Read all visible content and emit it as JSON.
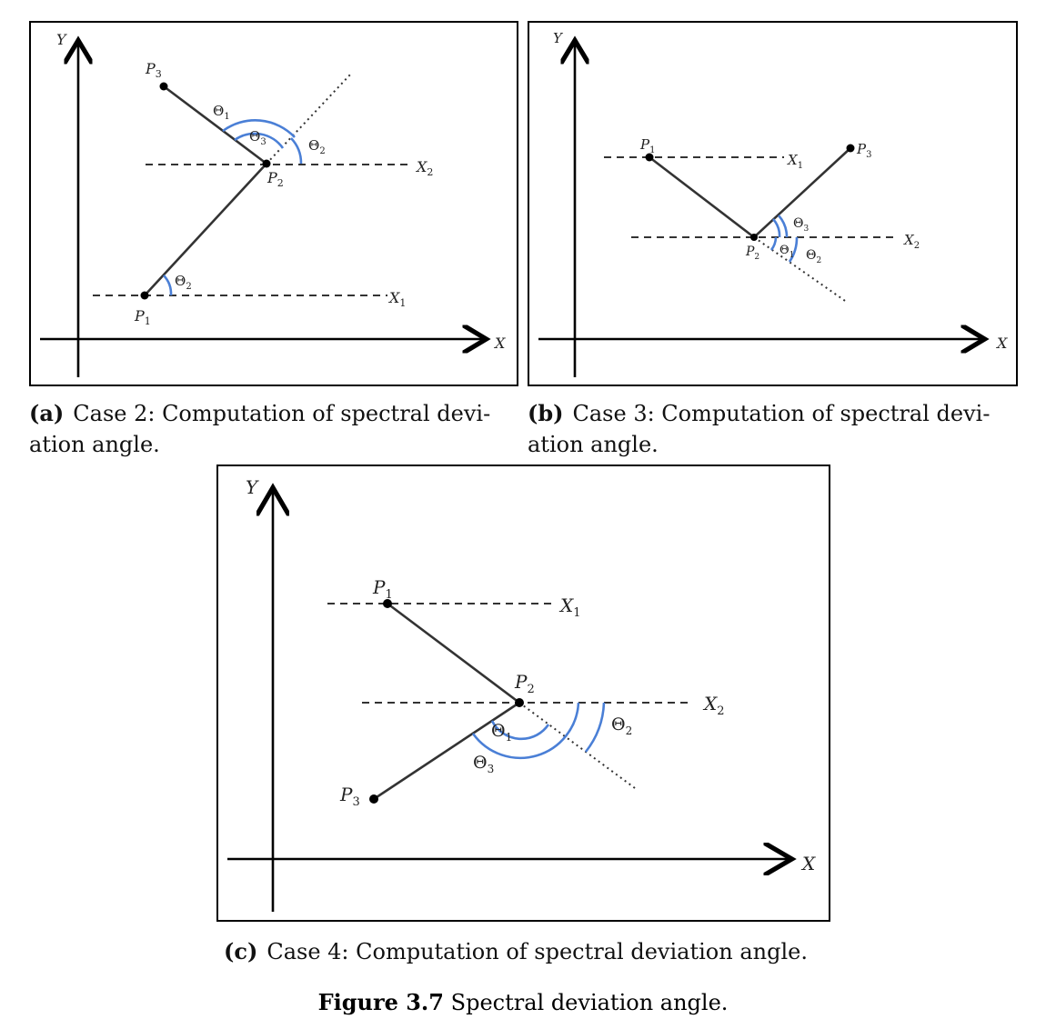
{
  "labels": {
    "x_axis": "X",
    "y_axis": "Y",
    "p1": "P",
    "p2": "P",
    "p3": "P",
    "sub1": "1",
    "sub2": "2",
    "sub3": "3",
    "x1": "X",
    "x2": "X",
    "theta": "Θ"
  },
  "captions": {
    "a_tag": "(a)",
    "a_text": "Case 2: Computation of spectral devi- ation angle.",
    "b_tag": "(b)",
    "b_text": "Case 3: Computation of spectral devi- ation angle.",
    "c_tag": "(c)",
    "c_text": "Case 4: Computation of spectral deviation angle."
  },
  "figure": {
    "tag": "Figure 3.7",
    "text": "Spectral deviation angle."
  },
  "colors": {
    "arc": "#4a7fd6",
    "line": "#333333"
  }
}
